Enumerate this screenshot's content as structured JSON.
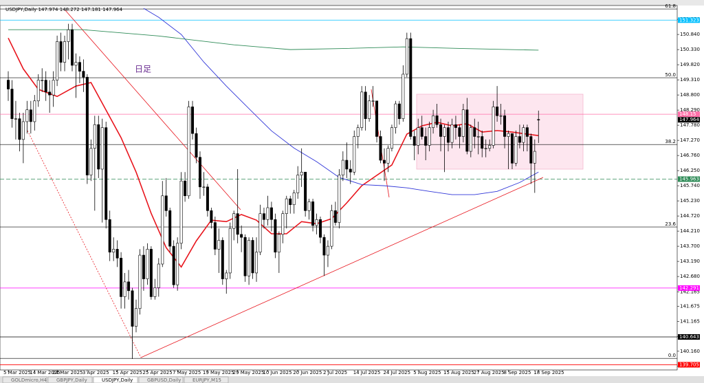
{
  "chart_data": {
    "type": "candlestick",
    "title": "USDJPY,Daily",
    "annotation": "日足",
    "ylim": [
      139.53,
      151.77
    ],
    "yticks": [
      {
        "value": 151.35,
        "label": "151.350"
      },
      {
        "value": 150.84,
        "label": "150.840"
      },
      {
        "value": 150.33,
        "label": "150.330"
      },
      {
        "value": 149.82,
        "label": "149.820"
      },
      {
        "value": 149.31,
        "label": "149.310"
      },
      {
        "value": 148.8,
        "label": "148.800"
      },
      {
        "value": 148.29,
        "label": "148.290"
      },
      {
        "value": 147.78,
        "label": "147.780"
      },
      {
        "value": 147.27,
        "label": "147.270"
      },
      {
        "value": 146.76,
        "label": "146.760"
      },
      {
        "value": 146.25,
        "label": "146.250"
      },
      {
        "value": 145.74,
        "label": "145.740"
      },
      {
        "value": 145.23,
        "label": "145.230"
      },
      {
        "value": 144.72,
        "label": "144.720"
      },
      {
        "value": 144.21,
        "label": "144.210"
      },
      {
        "value": 143.7,
        "label": "143.700"
      },
      {
        "value": 143.19,
        "label": "143.190"
      },
      {
        "value": 142.68,
        "label": "142.680"
      },
      {
        "value": 142.165,
        "label": "142.165"
      },
      {
        "value": 141.675,
        "label": "141.675"
      },
      {
        "value": 141.165,
        "label": "141.165"
      },
      {
        "value": 140.655,
        "label": "140.655"
      },
      {
        "value": 140.16,
        "label": "140.160"
      },
      {
        "value": 139.655,
        "label": "139.655"
      }
    ],
    "xticks": [
      {
        "value": 0,
        "label": "5 Mar 2025"
      },
      {
        "value": 7,
        "label": "14 Mar 2025"
      },
      {
        "value": 13,
        "label": "24 Mar 2025"
      },
      {
        "value": 21,
        "label": "3 Apr 2025"
      },
      {
        "value": 29,
        "label": "15 Apr 2025"
      },
      {
        "value": 37,
        "label": "25 Apr 2025"
      },
      {
        "value": 45,
        "label": "7 May 2025"
      },
      {
        "value": 53,
        "label": "19 May 2025"
      },
      {
        "value": 61,
        "label": "29 May 2025"
      },
      {
        "value": 69,
        "label": "10 Jun 2025"
      },
      {
        "value": 77,
        "label": "20 Jun 2025"
      },
      {
        "value": 85,
        "label": "2 Jul 2025"
      },
      {
        "value": 93,
        "label": "14 Jul 2025"
      },
      {
        "value": 101,
        "label": "24 Jul 2025"
      },
      {
        "value": 109,
        "label": "5 Aug 2025"
      },
      {
        "value": 117,
        "label": "15 Aug 2025"
      },
      {
        "value": 125,
        "label": "27 Aug 2025"
      },
      {
        "value": 133,
        "label": "8 Sep 2025"
      },
      {
        "value": 141,
        "label": "18 Sep 2025"
      }
    ],
    "up_color": "#ffffff",
    "down_color": "#000000",
    "candles": [
      [
        149.3,
        149.6,
        148.6,
        149.0
      ],
      [
        149.0,
        149.3,
        147.7,
        148.0
      ],
      [
        148.0,
        148.6,
        147.3,
        148.0
      ],
      [
        148.0,
        148.2,
        146.9,
        147.3
      ],
      [
        147.3,
        148.2,
        146.5,
        147.9
      ],
      [
        147.9,
        148.6,
        147.5,
        148.3
      ],
      [
        148.3,
        148.6,
        147.5,
        147.9
      ],
      [
        147.9,
        148.8,
        147.6,
        148.6
      ],
      [
        148.6,
        149.5,
        148.4,
        149.3
      ],
      [
        149.3,
        149.7,
        148.9,
        149.3
      ],
      [
        149.3,
        149.6,
        148.6,
        148.9
      ],
      [
        148.9,
        149.3,
        148.2,
        148.8
      ],
      [
        148.8,
        149.6,
        148.4,
        149.3
      ],
      [
        149.3,
        150.8,
        149.1,
        150.6
      ],
      [
        150.6,
        150.9,
        149.6,
        149.9
      ],
      [
        149.9,
        150.8,
        149.6,
        150.6
      ],
      [
        150.6,
        151.2,
        150.0,
        151.0
      ],
      [
        151.0,
        151.2,
        149.6,
        149.8
      ],
      [
        149.8,
        150.2,
        148.7,
        149.9
      ],
      [
        149.9,
        150.1,
        149.2,
        149.6
      ],
      [
        149.6,
        150.0,
        148.9,
        149.4
      ],
      [
        149.4,
        149.5,
        145.8,
        146.1
      ],
      [
        146.1,
        147.3,
        145.9,
        147.0
      ],
      [
        147.0,
        148.1,
        144.9,
        147.8
      ],
      [
        147.8,
        148.1,
        146.0,
        146.3
      ],
      [
        146.3,
        148.0,
        144.5,
        147.7
      ],
      [
        147.7,
        147.9,
        144.3,
        144.6
      ],
      [
        144.6,
        144.9,
        143.2,
        143.5
      ],
      [
        143.5,
        144.0,
        143.2,
        143.6
      ],
      [
        143.6,
        143.9,
        143.0,
        143.3
      ],
      [
        143.3,
        143.5,
        141.6,
        142.0
      ],
      [
        142.0,
        142.8,
        141.6,
        142.5
      ],
      [
        142.5,
        142.9,
        141.9,
        142.2
      ],
      [
        142.2,
        142.3,
        139.9,
        141.0
      ],
      [
        141.0,
        141.9,
        140.8,
        141.6
      ],
      [
        141.6,
        143.6,
        141.4,
        143.4
      ],
      [
        143.4,
        143.7,
        142.2,
        142.6
      ],
      [
        142.6,
        143.8,
        142.4,
        143.6
      ],
      [
        143.6,
        143.7,
        141.9,
        142.0
      ],
      [
        142.0,
        142.6,
        141.9,
        142.3
      ],
      [
        142.3,
        143.3,
        142.0,
        143.1
      ],
      [
        143.1,
        145.9,
        143.0,
        145.4
      ],
      [
        145.4,
        146.0,
        144.7,
        144.9
      ],
      [
        144.9,
        145.0,
        143.5,
        143.7
      ],
      [
        143.7,
        143.9,
        142.3,
        142.4
      ],
      [
        142.4,
        144.0,
        142.2,
        143.8
      ],
      [
        143.8,
        146.2,
        143.6,
        145.9
      ],
      [
        145.9,
        146.2,
        145.2,
        145.4
      ],
      [
        145.4,
        148.6,
        145.3,
        148.4
      ],
      [
        148.4,
        148.6,
        147.3,
        147.5
      ],
      [
        147.5,
        147.7,
        146.5,
        146.7
      ],
      [
        146.7,
        146.9,
        145.3,
        145.7
      ],
      [
        145.7,
        146.2,
        145.4,
        145.7
      ],
      [
        145.7,
        145.8,
        144.7,
        144.9
      ],
      [
        144.9,
        145.0,
        144.3,
        144.5
      ],
      [
        144.5,
        144.7,
        143.4,
        143.6
      ],
      [
        143.6,
        144.3,
        142.8,
        143.9
      ],
      [
        143.9,
        144.0,
        142.4,
        142.6
      ],
      [
        142.6,
        142.9,
        142.1,
        142.8
      ],
      [
        142.8,
        144.5,
        142.6,
        144.3
      ],
      [
        144.3,
        144.9,
        143.9,
        144.8
      ],
      [
        144.8,
        146.3,
        143.8,
        144.1
      ],
      [
        144.1,
        144.4,
        143.5,
        144.0
      ],
      [
        144.0,
        144.1,
        142.5,
        142.7
      ],
      [
        142.7,
        144.0,
        142.4,
        143.9
      ],
      [
        143.9,
        144.0,
        142.6,
        142.8
      ],
      [
        142.8,
        144.0,
        142.5,
        143.5
      ],
      [
        143.5,
        145.1,
        143.4,
        144.8
      ],
      [
        144.8,
        145.0,
        144.3,
        144.6
      ],
      [
        144.6,
        145.4,
        144.4,
        145.0
      ],
      [
        145.0,
        145.2,
        144.2,
        144.6
      ],
      [
        144.6,
        144.8,
        143.3,
        143.5
      ],
      [
        143.5,
        144.2,
        142.8,
        144.1
      ],
      [
        144.1,
        144.9,
        143.8,
        144.8
      ],
      [
        144.8,
        145.4,
        144.3,
        145.3
      ],
      [
        145.3,
        145.4,
        144.8,
        145.1
      ],
      [
        145.1,
        145.6,
        144.8,
        145.5
      ],
      [
        145.5,
        146.4,
        145.3,
        146.1
      ],
      [
        146.1,
        147.0,
        145.7,
        146.2
      ],
      [
        146.2,
        146.2,
        144.7,
        144.9
      ],
      [
        144.9,
        145.3,
        144.6,
        145.2
      ],
      [
        145.2,
        145.3,
        144.2,
        144.4
      ],
      [
        144.4,
        144.8,
        144.1,
        144.6
      ],
      [
        144.6,
        144.7,
        143.8,
        144.0
      ],
      [
        144.0,
        144.1,
        142.7,
        143.4
      ],
      [
        143.4,
        143.9,
        143.0,
        143.7
      ],
      [
        143.7,
        145.1,
        143.6,
        144.9
      ],
      [
        144.9,
        145.2,
        144.4,
        144.5
      ],
      [
        144.5,
        146.3,
        144.3,
        146.1
      ],
      [
        146.1,
        146.9,
        145.9,
        146.6
      ],
      [
        146.6,
        147.2,
        146.0,
        146.3
      ],
      [
        146.3,
        146.6,
        145.8,
        146.2
      ],
      [
        146.2,
        147.6,
        146.1,
        147.4
      ],
      [
        147.4,
        147.8,
        147.0,
        147.7
      ],
      [
        147.7,
        149.1,
        147.6,
        148.9
      ],
      [
        148.9,
        149.1,
        147.6,
        148.0
      ],
      [
        148.0,
        148.8,
        147.9,
        148.6
      ],
      [
        148.6,
        149.1,
        148.4,
        148.6
      ],
      [
        148.6,
        148.6,
        147.2,
        147.4
      ],
      [
        147.4,
        147.6,
        146.5,
        146.6
      ],
      [
        146.6,
        147.0,
        145.9,
        146.5
      ],
      [
        146.5,
        147.1,
        146.2,
        147.0
      ],
      [
        147.0,
        147.8,
        146.9,
        147.7
      ],
      [
        147.7,
        148.6,
        147.5,
        148.5
      ],
      [
        148.5,
        148.6,
        147.8,
        148.0
      ],
      [
        148.0,
        149.8,
        147.9,
        149.5
      ],
      [
        149.5,
        150.9,
        149.4,
        150.7
      ],
      [
        150.7,
        150.9,
        147.3,
        147.4
      ],
      [
        147.4,
        147.6,
        146.6,
        147.1
      ],
      [
        147.1,
        148.0,
        146.8,
        147.7
      ],
      [
        147.7,
        148.1,
        147.3,
        147.4
      ],
      [
        147.4,
        147.7,
        146.6,
        147.1
      ],
      [
        147.1,
        147.9,
        146.9,
        147.7
      ],
      [
        147.7,
        148.3,
        147.5,
        148.1
      ],
      [
        148.1,
        148.5,
        147.7,
        147.8
      ],
      [
        147.8,
        148.0,
        146.9,
        147.4
      ],
      [
        147.4,
        147.8,
        146.2,
        147.7
      ],
      [
        147.7,
        147.9,
        146.9,
        147.2
      ],
      [
        147.2,
        148.0,
        147.0,
        147.8
      ],
      [
        147.8,
        148.1,
        147.3,
        147.7
      ],
      [
        147.7,
        147.8,
        147.0,
        147.4
      ],
      [
        147.4,
        148.5,
        147.2,
        148.3
      ],
      [
        148.3,
        148.7,
        146.8,
        146.9
      ],
      [
        146.9,
        147.8,
        146.7,
        147.7
      ],
      [
        147.7,
        148.0,
        147.0,
        147.4
      ],
      [
        147.4,
        147.9,
        146.8,
        147.4
      ],
      [
        147.4,
        147.6,
        146.7,
        147.0
      ],
      [
        147.0,
        147.3,
        146.7,
        147.0
      ],
      [
        147.0,
        147.3,
        146.9,
        147.1
      ],
      [
        147.1,
        148.6,
        147.0,
        148.4
      ],
      [
        148.4,
        149.1,
        147.9,
        148.1
      ],
      [
        148.1,
        148.5,
        147.8,
        148.1
      ],
      [
        148.1,
        148.3,
        147.0,
        147.4
      ],
      [
        147.4,
        147.6,
        146.3,
        147.5
      ],
      [
        147.5,
        147.5,
        146.3,
        146.5
      ],
      [
        146.5,
        147.6,
        146.4,
        147.4
      ],
      [
        147.4,
        147.8,
        147.0,
        147.2
      ],
      [
        147.2,
        147.8,
        146.9,
        147.7
      ],
      [
        147.7,
        147.8,
        146.9,
        147.4
      ],
      [
        147.4,
        147.5,
        145.8,
        146.5
      ],
      [
        146.5,
        147.3,
        145.5,
        146.9
      ],
      [
        147.974,
        148.272,
        147.181,
        147.964
      ]
    ],
    "indicators": [
      {
        "color": "#e8141c",
        "x": [
          0,
          4,
          8,
          13,
          18,
          22,
          26,
          30,
          34,
          38,
          42,
          46,
          50,
          54,
          58,
          62,
          66,
          70,
          74,
          78,
          82,
          86,
          90,
          94,
          98,
          102,
          106,
          110,
          114,
          118,
          122,
          126,
          130,
          134,
          138,
          141
        ],
        "values": [
          150.72,
          149.68,
          148.99,
          148.75,
          149.1,
          149.22,
          148.29,
          147.36,
          146.2,
          144.81,
          143.65,
          143.0,
          143.88,
          144.58,
          144.53,
          144.77,
          144.58,
          144.12,
          144.12,
          144.53,
          144.46,
          144.63,
          145.16,
          145.74,
          146.09,
          146.44,
          147.48,
          147.76,
          147.88,
          147.76,
          147.83,
          147.55,
          147.6,
          147.55,
          147.48,
          147.43
        ]
      },
      {
        "color": "#2f35d8",
        "x": [
          36,
          40,
          46,
          52,
          58,
          64,
          70,
          76,
          82,
          88,
          94,
          100,
          106,
          112,
          118,
          124,
          130,
          136,
          141
        ],
        "values": [
          151.72,
          151.42,
          150.84,
          149.91,
          149.1,
          148.34,
          147.59,
          147.01,
          146.55,
          146.02,
          145.78,
          145.74,
          145.67,
          145.55,
          145.44,
          145.44,
          145.55,
          145.85,
          146.2
        ]
      },
      {
        "color": "#2e8b57",
        "x": [
          0,
          20,
          40,
          60,
          75,
          90,
          105,
          120,
          141
        ],
        "values": [
          151.0,
          151.0,
          150.79,
          150.49,
          150.33,
          150.37,
          150.42,
          150.37,
          150.31
        ]
      }
    ],
    "fib_levels": [
      {
        "label": "61.8",
        "value": 151.7
      },
      {
        "label": "50.0",
        "value": 149.38
      },
      {
        "label": "38.2",
        "value": 147.13
      },
      {
        "label": "23.6",
        "value": 144.35
      },
      {
        "label": "0.0",
        "value": 139.92
      }
    ],
    "hlines": [
      {
        "value": 151.323,
        "color": "#00bfff"
      },
      {
        "value": 148.15,
        "color": "#ff6fa8"
      },
      {
        "value": 145.963,
        "color": "#2e8b57",
        "dashed": true
      },
      {
        "value": 142.291,
        "color": "#ff00ff"
      },
      {
        "value": 140.643,
        "color": "#000000"
      },
      {
        "value": 139.705,
        "color": "#ff0000"
      }
    ],
    "tabs": [
      "GOLDmicro,H4",
      "GBPJPY,Daily",
      "USDJPY,Daily",
      "GBPUSD,Daily",
      "EURJPY,M15"
    ],
    "active_tab": 2
  }
}
